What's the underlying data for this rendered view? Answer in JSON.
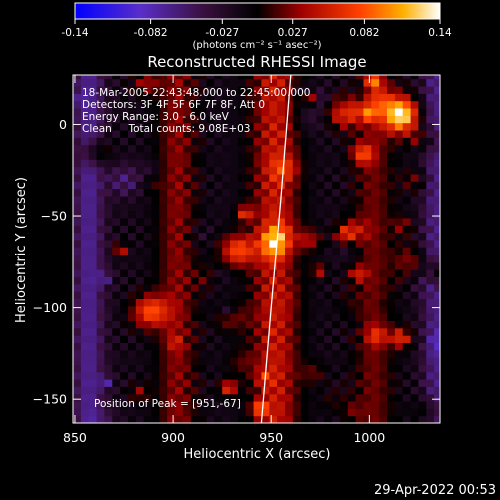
{
  "colorbar": {
    "tick_labels": [
      "-0.14",
      "-0.082",
      "-0.027",
      "0.027",
      "0.082",
      "0.14"
    ],
    "tick_values": [
      -0.14,
      -0.082,
      -0.027,
      0.027,
      0.082,
      0.14
    ],
    "range": [
      -0.14,
      0.14
    ],
    "units_label": "(photons cm⁻² s⁻¹ asec⁻²)",
    "colormap": "blue-purple-black-red-orange-yellow-white"
  },
  "chart_data": {
    "type": "heatmap",
    "title": "Reconstructed RHESSI Image",
    "xlabel": "Heliocentric X (arcsec)",
    "ylabel": "Heliocentric Y (arcsec)",
    "xlim": [
      849,
      1036
    ],
    "ylim": [
      -163,
      27
    ],
    "x_ticks": [
      850,
      900,
      950,
      1000
    ],
    "y_ticks": [
      0,
      -50,
      -100,
      -150
    ],
    "x_tick_labels": [
      "850",
      "900",
      "950",
      "1000"
    ],
    "y_tick_labels": [
      "0",
      "−50",
      "−100",
      "−150"
    ],
    "peak": {
      "x": 951,
      "y": -67
    },
    "limb_curve": [
      [
        960,
        27
      ],
      [
        955,
        -40
      ],
      [
        950,
        -100
      ],
      [
        945,
        -163
      ]
    ],
    "annotations": [
      "18-Mar-2005 22:43:48.000 to 22:45:00.000",
      "Detectors: 3F 4F 5F 6F 7F 8F, Att 0",
      "Energy Range: 3.0 - 6.0 keV",
      "Clean     Total counts: 9.08E+03",
      "Position of Peak = [951,-67]"
    ]
  },
  "footer": {
    "timestamp": "29-Apr-2022 00:53"
  }
}
